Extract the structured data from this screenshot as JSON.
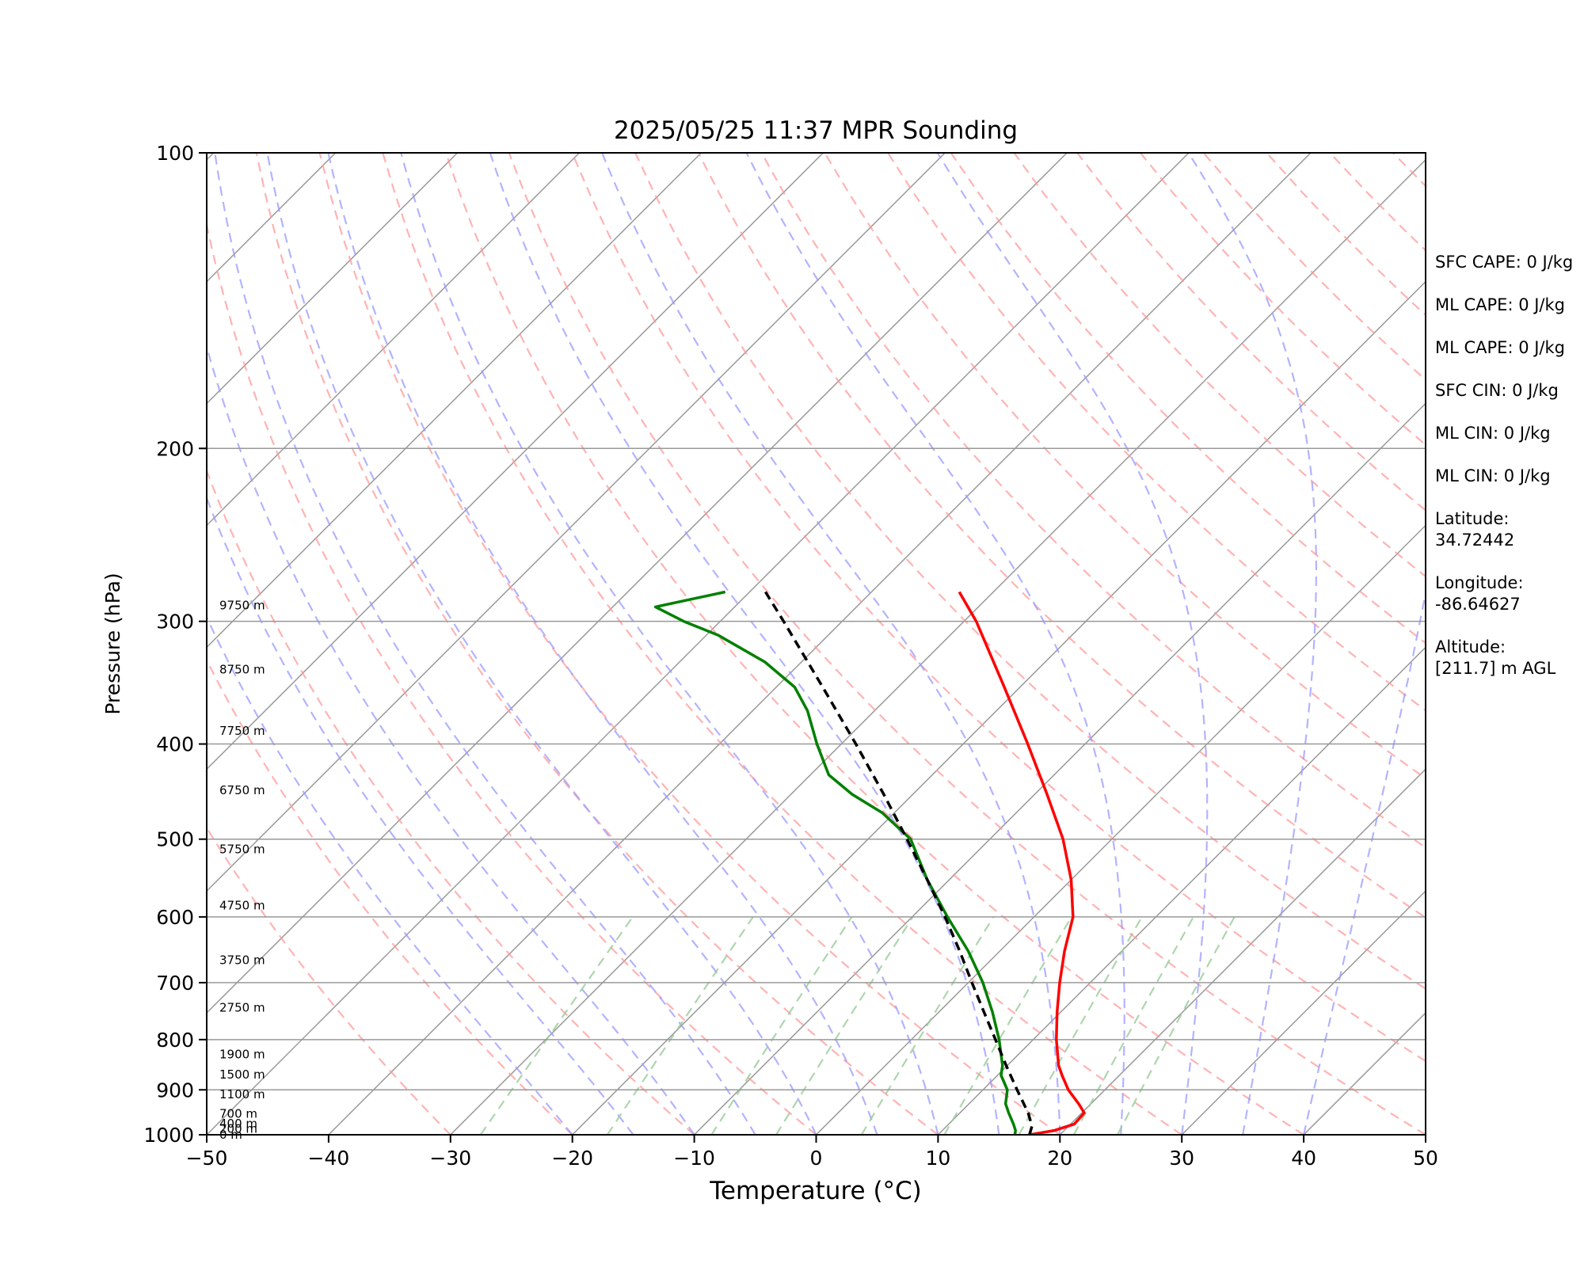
{
  "chart_data": {
    "type": "line",
    "subtype": "skew-t log-p",
    "title": "2025/05/25 11:37 MPR Sounding",
    "xlabel": "Temperature (°C)",
    "ylabel": "Pressure (hPa)",
    "xlim": [
      -50,
      50
    ],
    "ylim": [
      1000,
      100
    ],
    "y_scale": "log",
    "x_ticks": [
      "−50",
      "−40",
      "−30",
      "−20",
      "−10",
      "0",
      "10",
      "20",
      "30",
      "40",
      "50"
    ],
    "y_ticks": [
      "100",
      "200",
      "300",
      "400",
      "500",
      "600",
      "700",
      "800",
      "900",
      "1000"
    ],
    "grid": "horizontal isobars",
    "height_labels": [
      {
        "p": 1000,
        "label": "0 m"
      },
      {
        "p": 986,
        "label": "200 m"
      },
      {
        "p": 974,
        "label": "400 m"
      },
      {
        "p": 952,
        "label": "700 m"
      },
      {
        "p": 910,
        "label": "1100 m"
      },
      {
        "p": 868,
        "label": "1500 m"
      },
      {
        "p": 828,
        "label": "1900 m"
      },
      {
        "p": 742,
        "label": "2750 m"
      },
      {
        "p": 664,
        "label": "3750 m"
      },
      {
        "p": 584,
        "label": "4750 m"
      },
      {
        "p": 512,
        "label": "5750 m"
      },
      {
        "p": 446,
        "label": "6750 m"
      },
      {
        "p": 388,
        "label": "7750 m"
      },
      {
        "p": 336,
        "label": "8750 m"
      },
      {
        "p": 289,
        "label": "9750 m"
      }
    ],
    "series": [
      {
        "color": "#ff0000",
        "points": [
          [
            1000,
            17.5
          ],
          [
            990,
            19.2
          ],
          [
            975,
            20.3
          ],
          [
            950,
            20.2
          ],
          [
            930,
            19.0
          ],
          [
            900,
            17.0
          ],
          [
            870,
            15.3
          ],
          [
            850,
            14.2
          ],
          [
            800,
            11.9
          ],
          [
            750,
            9.7
          ],
          [
            700,
            7.5
          ],
          [
            650,
            5.3
          ],
          [
            600,
            3.2
          ],
          [
            550,
            0.0
          ],
          [
            500,
            -4.0
          ],
          [
            450,
            -9.0
          ],
          [
            400,
            -14.7
          ],
          [
            350,
            -21.3
          ],
          [
            300,
            -29.0
          ],
          [
            280,
            -32.8
          ]
        ]
      },
      {
        "color": "#008000",
        "points": [
          [
            1000,
            16.3
          ],
          [
            990,
            16.0
          ],
          [
            975,
            15.3
          ],
          [
            950,
            14.0
          ],
          [
            930,
            13.0
          ],
          [
            900,
            12.0
          ],
          [
            870,
            10.3
          ],
          [
            850,
            9.6
          ],
          [
            800,
            7.2
          ],
          [
            750,
            4.4
          ],
          [
            700,
            1.2
          ],
          [
            650,
            -2.6
          ],
          [
            600,
            -7.1
          ],
          [
            550,
            -11.8
          ],
          [
            500,
            -16.5
          ],
          [
            470,
            -21.0
          ],
          [
            450,
            -25.0
          ],
          [
            430,
            -28.5
          ],
          [
            400,
            -32.0
          ],
          [
            370,
            -35.5
          ],
          [
            350,
            -38.5
          ],
          [
            330,
            -43.0
          ],
          [
            310,
            -49.0
          ],
          [
            300,
            -53.0
          ],
          [
            290,
            -56.5
          ],
          [
            280,
            -52.0
          ]
        ]
      },
      {
        "color": "#000000",
        "style": "dashed",
        "points": [
          [
            1000,
            17.5
          ],
          [
            980,
            17.0
          ],
          [
            950,
            15.6
          ],
          [
            900,
            12.8
          ],
          [
            850,
            9.9
          ],
          [
            800,
            6.9
          ],
          [
            750,
            3.7
          ],
          [
            700,
            0.3
          ],
          [
            650,
            -3.3
          ],
          [
            600,
            -7.3
          ],
          [
            550,
            -11.8
          ],
          [
            500,
            -16.8
          ],
          [
            450,
            -22.4
          ],
          [
            400,
            -28.8
          ],
          [
            350,
            -36.2
          ],
          [
            300,
            -44.8
          ],
          [
            280,
            -48.7
          ]
        ]
      }
    ],
    "background_lines": {
      "dry_adiabats_color": "#ff9999",
      "moist_adiabats_color": "#9999ff",
      "mixing_ratio_color": "#99cc99",
      "isotherm_color": "#999999"
    }
  },
  "annotations": [
    "SFC CAPE: 0 J/kg",
    "ML CAPE: 0 J/kg",
    "ML CAPE: 0 J/kg",
    "SFC CIN: 0 J/kg",
    "ML CIN: 0 J/kg",
    "ML CIN: 0 J/kg",
    "Latitude:\n34.72442",
    "Longitude:\n-86.64627",
    "Altitude:\n[211.7] m AGL"
  ]
}
